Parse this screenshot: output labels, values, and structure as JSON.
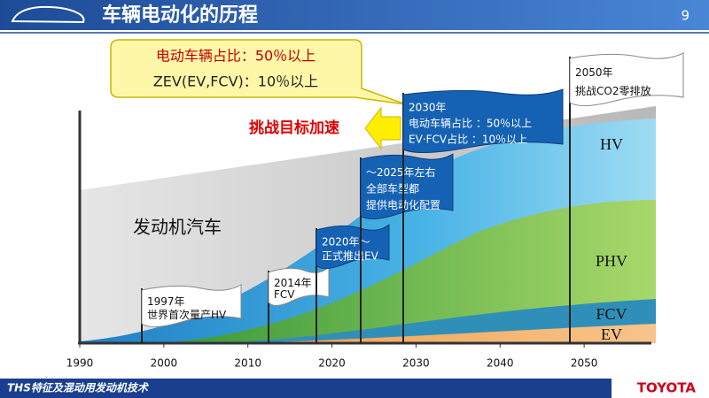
{
  "header": {
    "title": "车辆电动化的历程",
    "page": "9"
  },
  "callout": {
    "lines": [
      "电动车辆占比：50％以上",
      "ZEV(EV,FCV)：10％以上"
    ]
  },
  "accelerate": "挑战目标加速",
  "flags": [
    {
      "lines": [
        "1997年",
        "世界首次量产HV"
      ]
    },
    {
      "lines": [
        "2014年",
        "FCV"
      ]
    },
    {
      "lines": [
        "2020年～",
        "正式推出EV"
      ]
    },
    {
      "lines": [
        "～2025年左右",
        "全部车型都",
        "提供电动化配置"
      ]
    },
    {
      "lines": [
        "2030年",
        "电动车辆占比 ：50％以上",
        "EV·FCV占比 ：10％以上"
      ]
    },
    {
      "lines": [
        "2050年",
        "挑战CO2零排放"
      ]
    }
  ],
  "areas": {
    "engine": "发动机汽车",
    "hv": "HV",
    "phv": "PHV",
    "fcv": "FCV",
    "ev": "EV"
  },
  "axis": {
    "xlim": [
      1990,
      2058
    ],
    "xticks": [
      1990,
      2000,
      2010,
      2020,
      2030,
      2040,
      2050
    ]
  },
  "footer": {
    "text": "THS特征及混动用发动机技术",
    "brand": "TOYOTA"
  }
}
